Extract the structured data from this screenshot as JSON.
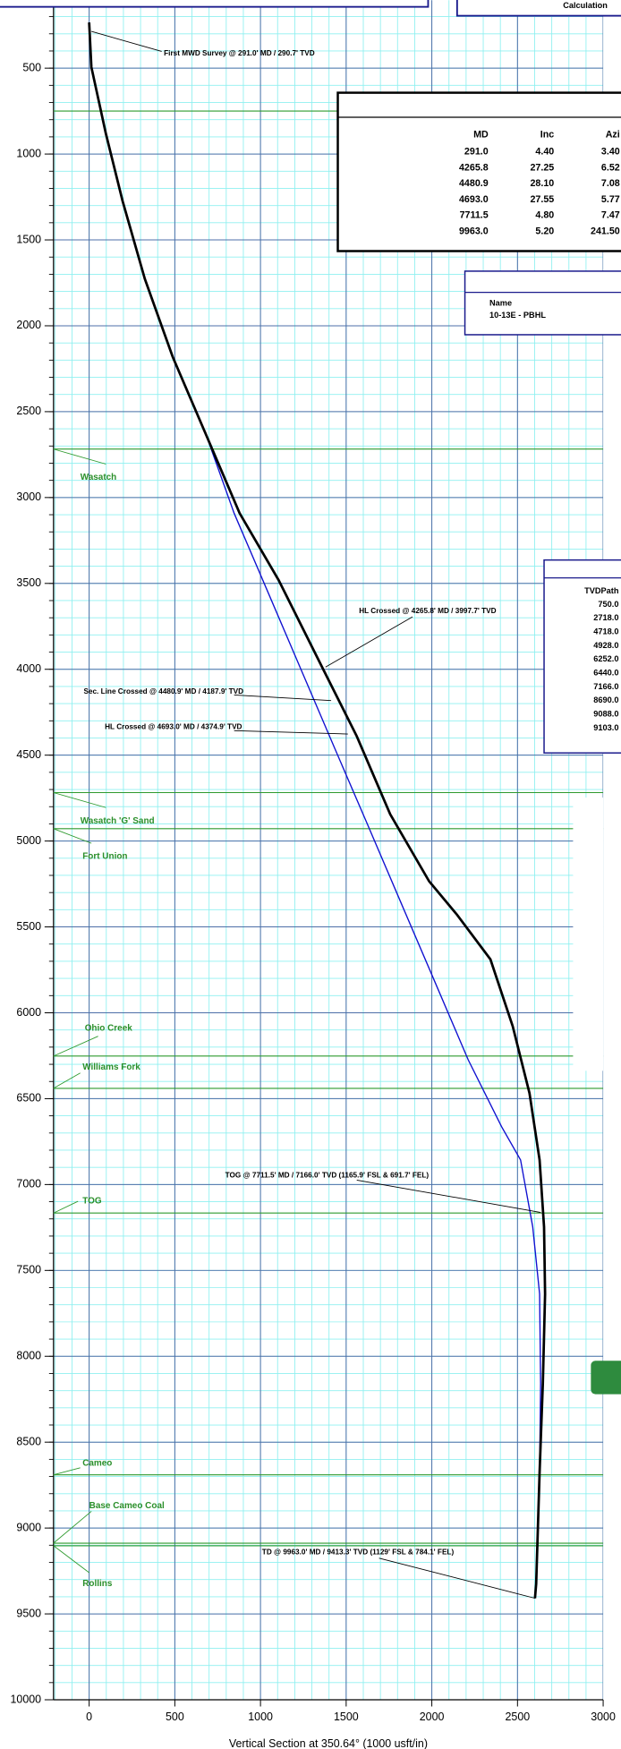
{
  "chart_data": {
    "type": "line",
    "x_label": "Vertical Section at 350.64° (1000 usft/in)",
    "xlim": [
      -208,
      3000
    ],
    "ylim": [
      10000,
      104
    ],
    "xticks": [
      0,
      500,
      1000,
      1500,
      2000,
      2500,
      3000
    ],
    "yticks": [
      500,
      1000,
      1500,
      2000,
      2500,
      3000,
      3500,
      4000,
      4500,
      5000,
      5500,
      6000,
      6500,
      7000,
      7500,
      8000,
      8500,
      9000,
      9500,
      {
        "value": 10000,
        "label": "10000"
      }
    ],
    "grid": true,
    "series": [
      {
        "color": "#1010d0",
        "x": [
          0,
          13,
          98,
          195,
          325,
          488,
          683,
          846,
          1041,
          1236,
          1431,
          1627,
          1822,
          2017,
          2212,
          2407,
          2518,
          2589,
          2629,
          2635,
          2629,
          2609,
          2602
        ],
        "values": [
          234,
          494,
          883,
          1273,
          1727,
          2182,
          2636,
          3091,
          3545,
          4000,
          4455,
          4909,
          5364,
          5818,
          6273,
          6663,
          6857,
          7247,
          7637,
          8157,
          8676,
          9325,
          9409
        ]
      },
      {
        "color": "#000000",
        "x": [
          0,
          13,
          98,
          195,
          325,
          488,
          683,
          878,
          1106,
          1366,
          1562,
          1757,
          1984,
          2147,
          2342,
          2472,
          2570,
          2629,
          2655,
          2661,
          2648,
          2629,
          2609,
          2602
        ],
        "values": [
          234,
          494,
          883,
          1273,
          1727,
          2182,
          2636,
          3091,
          3481,
          4000,
          4390,
          4844,
          5234,
          5429,
          5689,
          6078,
          6468,
          6857,
          7247,
          7637,
          8157,
          8676,
          9325,
          9409
        ]
      }
    ],
    "annotations": [
      "First MWD Survey @ 291.0' MD / 290.7' TVD",
      "HL Crossed @ 4265.8' MD / 3997.7' TVD",
      "Sec. Line Crossed @ 4480.9' MD / 4187.9' TVD",
      "HL Crossed @ 4693.0' MD / 4374.9' TVD",
      "TOG @ 7711.5' MD / 7166.0' TVD  (1165.9' FSL & 691.7' FEL)",
      "TD @ 9963.0' MD / 9413.3' TVD  (1129' FSL & 784.1' FEL)"
    ],
    "formation_color": "#2e9a2e",
    "formations": [
      {
        "tvd": 750,
        "label": "750.0"
      },
      {
        "name": "Wasatch",
        "tvd": 2718,
        "label": "2718.0"
      },
      {
        "name": "Wasatch 'G' Sand",
        "tvd": 4718,
        "label": "4718.0"
      },
      {
        "name": "Fort Union",
        "tvd": 4928,
        "label": "4928.0"
      },
      {
        "name": "Ohio Creek",
        "tvd": 6252,
        "label": "6252.0"
      },
      {
        "name": "Williams Fork",
        "tvd": 6440,
        "label": "6440.0"
      },
      {
        "name": "TOG",
        "tvd": 7166,
        "label": "7166.0"
      },
      {
        "name": "Cameo",
        "tvd": 8690,
        "label": "8690.0"
      },
      {
        "name": "Base Cameo Coal",
        "tvd": 9088,
        "label": "9088.0"
      },
      {
        "name": "Rollins",
        "tvd": 9103,
        "label": "9103.0"
      }
    ]
  },
  "calc_box": {
    "title": "Calculation"
  },
  "survey_table": {
    "headers": [
      "MD",
      "Inc",
      "Azi"
    ],
    "rows": [
      [
        "291.0",
        "4.40",
        "3.40"
      ],
      [
        "4265.8",
        "27.25",
        "6.52"
      ],
      [
        "4480.9",
        "28.10",
        "7.08"
      ],
      [
        "4693.0",
        "27.55",
        "5.77"
      ],
      [
        "7711.5",
        "4.80",
        "7.47"
      ],
      [
        "9963.0",
        "5.20",
        "241.50"
      ]
    ]
  },
  "target_box": {
    "header": "Name",
    "value": "10-13E - PBHL"
  },
  "formation_table": {
    "header": "TVDPath"
  }
}
